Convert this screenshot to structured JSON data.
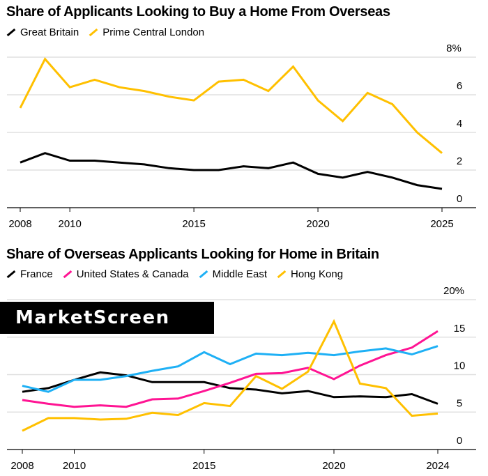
{
  "chart_data": [
    {
      "type": "line",
      "title": "Share of Applicants Looking to Buy a Home From Overseas",
      "xlabel": "",
      "ylabel": "",
      "x": [
        2008,
        2009,
        2010,
        2011,
        2012,
        2013,
        2014,
        2015,
        2016,
        2017,
        2018,
        2019,
        2020,
        2021,
        2022,
        2023,
        2024,
        2025
      ],
      "xticks": [
        "2008",
        "2010",
        "2015",
        "2020",
        "2025"
      ],
      "yticks": [
        "0",
        "2",
        "4",
        "6",
        "8%"
      ],
      "ylim": [
        0,
        8
      ],
      "legend_position": "top-left",
      "series": [
        {
          "name": "Great Britain",
          "color": "#000000",
          "values": [
            2.4,
            2.9,
            2.5,
            2.5,
            2.4,
            2.3,
            2.1,
            2.0,
            2.0,
            2.2,
            2.1,
            2.4,
            1.8,
            1.6,
            1.9,
            1.6,
            1.2,
            1.0
          ]
        },
        {
          "name": "Prime Central London",
          "color": "#ffc000",
          "values": [
            5.3,
            7.9,
            6.4,
            6.8,
            6.4,
            6.2,
            5.9,
            5.7,
            6.7,
            6.8,
            6.2,
            7.5,
            5.7,
            4.6,
            6.1,
            5.5,
            4.0,
            2.9
          ]
        }
      ]
    },
    {
      "type": "line",
      "title": "Share of Overseas Applicants Looking for Home in Britain",
      "xlabel": "",
      "ylabel": "",
      "x": [
        2008,
        2009,
        2010,
        2011,
        2012,
        2013,
        2014,
        2015,
        2016,
        2017,
        2018,
        2019,
        2020,
        2021,
        2022,
        2023,
        2024
      ],
      "xticks": [
        "2008",
        "2010",
        "2015",
        "2020",
        "2024"
      ],
      "yticks": [
        "0",
        "5",
        "10",
        "15",
        "20%"
      ],
      "ylim": [
        0,
        20
      ],
      "legend_position": "top-left",
      "series": [
        {
          "name": "France",
          "color": "#000000",
          "values": [
            7.7,
            8.2,
            9.3,
            10.3,
            9.9,
            9.0,
            9.0,
            9.0,
            8.2,
            8.0,
            7.5,
            7.8,
            7.0,
            7.1,
            7.0,
            7.4,
            6.1
          ]
        },
        {
          "name": "United States & Canada",
          "color": "#ff1493",
          "values": [
            6.6,
            6.1,
            5.7,
            5.9,
            5.7,
            6.7,
            6.8,
            7.8,
            8.9,
            10.1,
            10.2,
            10.9,
            9.4,
            11.2,
            12.6,
            13.6,
            15.8
          ]
        },
        {
          "name": "Middle East",
          "color": "#1eb0f5",
          "values": [
            8.5,
            7.7,
            9.3,
            9.3,
            9.8,
            10.5,
            11.1,
            13.0,
            11.4,
            12.8,
            12.6,
            12.9,
            12.6,
            13.1,
            13.5,
            12.7,
            13.8
          ]
        },
        {
          "name": "Hong Kong",
          "color": "#ffc000",
          "values": [
            2.5,
            4.2,
            4.2,
            4.0,
            4.1,
            4.9,
            4.6,
            6.2,
            5.8,
            9.8,
            8.1,
            10.4,
            17.1,
            8.8,
            8.2,
            4.5,
            4.8
          ]
        }
      ]
    }
  ],
  "watermark": "MarketScreen"
}
